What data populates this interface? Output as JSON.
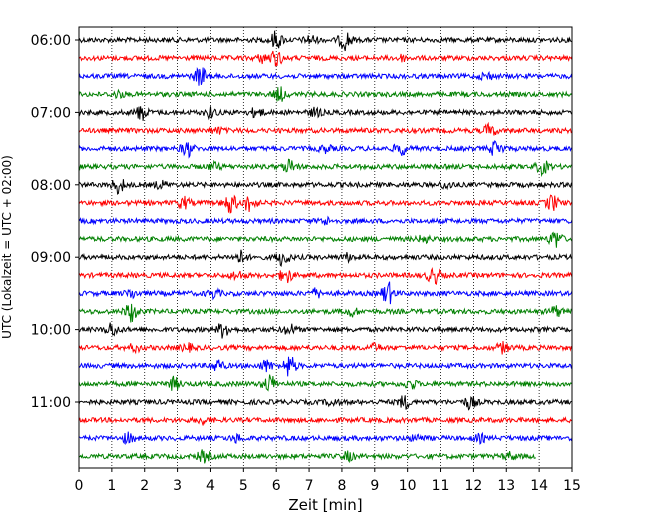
{
  "chart_data": {
    "type": "line",
    "title": "",
    "xlabel": "Zeit  [min]",
    "ylabel": "UTC (Lokalzeit = UTC + 02:00)",
    "xlim": [
      0,
      15
    ],
    "xticks": [
      0,
      1,
      2,
      3,
      4,
      5,
      6,
      7,
      8,
      9,
      10,
      11,
      12,
      13,
      14,
      15
    ],
    "grid": "vertical dotted lines at each minute",
    "trace_interval_minutes": 15,
    "y_tick_labels": [
      "06:00",
      "07:00",
      "08:00",
      "09:00",
      "10:00",
      "11:00"
    ],
    "start_time": "06:00",
    "color_cycle": [
      "#000000",
      "#ff0000",
      "#0000ff",
      "#008000"
    ],
    "series": [
      {
        "start": "06:00",
        "color": "#000000",
        "end_min": 15,
        "events": [
          [
            6.0,
            2.5
          ],
          [
            7.05,
            1.4
          ],
          [
            8.1,
            2.8
          ]
        ]
      },
      {
        "start": "06:15",
        "color": "#ff0000",
        "end_min": 15,
        "events": [
          [
            6.0,
            2.2
          ],
          [
            5.6,
            1.2
          ],
          [
            9.8,
            0.8
          ]
        ]
      },
      {
        "start": "06:30",
        "color": "#0000ff",
        "end_min": 15,
        "events": [
          [
            3.7,
            2.8
          ],
          [
            12.4,
            1.0
          ]
        ]
      },
      {
        "start": "06:45",
        "color": "#008000",
        "end_min": 15,
        "events": [
          [
            6.1,
            2.0
          ],
          [
            1.2,
            0.9
          ]
        ]
      },
      {
        "start": "07:00",
        "color": "#000000",
        "end_min": 15,
        "events": [
          [
            1.9,
            2.2
          ],
          [
            4.0,
            1.3
          ],
          [
            5.4,
            1.4
          ],
          [
            7.2,
            1.2
          ]
        ]
      },
      {
        "start": "07:15",
        "color": "#ff0000",
        "end_min": 15,
        "events": [
          [
            12.5,
            1.8
          ],
          [
            4.2,
            0.8
          ]
        ]
      },
      {
        "start": "07:30",
        "color": "#0000ff",
        "end_min": 15,
        "events": [
          [
            3.3,
            2.2
          ],
          [
            9.8,
            1.8
          ],
          [
            12.7,
            2.4
          ],
          [
            7.5,
            1.0
          ]
        ]
      },
      {
        "start": "07:45",
        "color": "#008000",
        "end_min": 15,
        "events": [
          [
            6.4,
            2.0
          ],
          [
            14.1,
            2.0
          ],
          [
            4.1,
            1.0
          ]
        ]
      },
      {
        "start": "08:00",
        "color": "#000000",
        "end_min": 15,
        "events": [
          [
            1.2,
            2.4
          ],
          [
            11.2,
            1.0
          ],
          [
            2.5,
            1.0
          ]
        ]
      },
      {
        "start": "08:15",
        "color": "#ff0000",
        "end_min": 15,
        "events": [
          [
            4.6,
            3.0
          ],
          [
            5.2,
            2.6
          ],
          [
            3.2,
            1.6
          ],
          [
            14.4,
            2.2
          ]
        ]
      },
      {
        "start": "08:30",
        "color": "#0000ff",
        "end_min": 15,
        "events": [
          [
            7.5,
            0.9
          ]
        ]
      },
      {
        "start": "08:45",
        "color": "#008000",
        "end_min": 15,
        "events": [
          [
            14.5,
            2.6
          ],
          [
            10.5,
            1.0
          ]
        ]
      },
      {
        "start": "09:00",
        "color": "#000000",
        "end_min": 15,
        "events": [
          [
            4.9,
            1.8
          ],
          [
            6.2,
            2.4
          ],
          [
            8.2,
            1.0
          ]
        ]
      },
      {
        "start": "09:15",
        "color": "#ff0000",
        "end_min": 15,
        "events": [
          [
            10.8,
            2.4
          ],
          [
            6.3,
            2.2
          ],
          [
            4.8,
            1.2
          ]
        ]
      },
      {
        "start": "09:30",
        "color": "#0000ff",
        "end_min": 15,
        "events": [
          [
            9.4,
            3.2
          ],
          [
            1.6,
            1.2
          ],
          [
            4.1,
            1.2
          ],
          [
            7.2,
            1.2
          ]
        ]
      },
      {
        "start": "09:45",
        "color": "#008000",
        "end_min": 15,
        "events": [
          [
            1.6,
            3.0
          ],
          [
            8.3,
            1.2
          ],
          [
            14.5,
            1.5
          ]
        ]
      },
      {
        "start": "10:00",
        "color": "#000000",
        "end_min": 15,
        "events": [
          [
            1.0,
            2.0
          ],
          [
            4.4,
            2.4
          ],
          [
            6.4,
            1.5
          ]
        ]
      },
      {
        "start": "10:15",
        "color": "#ff0000",
        "end_min": 15,
        "events": [
          [
            12.9,
            1.5
          ],
          [
            1.7,
            1.0
          ],
          [
            3.3,
            1.0
          ],
          [
            9.0,
            1.0
          ]
        ]
      },
      {
        "start": "10:30",
        "color": "#0000ff",
        "end_min": 15,
        "events": [
          [
            6.4,
            3.2
          ],
          [
            4.2,
            1.8
          ],
          [
            5.7,
            1.6
          ]
        ]
      },
      {
        "start": "10:45",
        "color": "#008000",
        "end_min": 15,
        "events": [
          [
            5.8,
            2.6
          ],
          [
            2.9,
            1.8
          ],
          [
            10.1,
            1.3
          ]
        ]
      },
      {
        "start": "11:00",
        "color": "#000000",
        "end_min": 15,
        "events": [
          [
            9.9,
            1.8
          ],
          [
            11.9,
            1.8
          ],
          [
            7.7,
            1.0
          ]
        ]
      },
      {
        "start": "11:15",
        "color": "#ff0000",
        "end_min": 15,
        "events": [
          [
            3.8,
            1.0
          ]
        ]
      },
      {
        "start": "11:30",
        "color": "#0000ff",
        "end_min": 15,
        "events": [
          [
            1.5,
            1.4
          ],
          [
            4.8,
            1.0
          ],
          [
            10.3,
            1.0
          ],
          [
            12.2,
            1.0
          ]
        ]
      },
      {
        "start": "11:45",
        "color": "#008000",
        "end_min": 13.9,
        "events": [
          [
            3.8,
            1.6
          ],
          [
            8.2,
            1.2
          ],
          [
            13.1,
            1.0
          ]
        ]
      }
    ]
  }
}
